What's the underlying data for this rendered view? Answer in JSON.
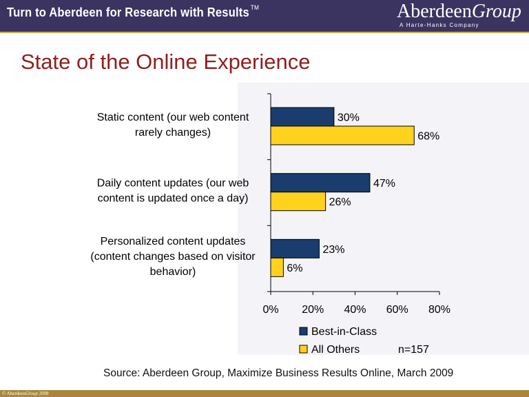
{
  "header": {
    "tagline": "Turn to Aberdeen for Research with Results",
    "trademark": "TM",
    "logo_main_a": "Aberdeen",
    "logo_main_b": "Group",
    "logo_sub": "A Harte-Hanks Company"
  },
  "slide": {
    "title": "State of the Online Experience",
    "source": "Source: Aberdeen Group, Maximize Business Results Online, March 2009"
  },
  "footer": {
    "copyright_a": "© Aberdeen",
    "copyright_b": "Group",
    "copyright_c": " 2008"
  },
  "chart_data": {
    "type": "bar",
    "orientation": "horizontal",
    "categories": [
      [
        "Static content (our web content",
        "rarely changes)"
      ],
      [
        "Daily content updates (our web",
        "content is updated once a day)"
      ],
      [
        "Personalized content updates",
        "(content changes based on visitor",
        "behavior)"
      ]
    ],
    "series": [
      {
        "name": "Best-in-Class",
        "values": [
          30,
          47,
          23
        ],
        "labels": [
          "30%",
          "47%",
          "23%"
        ],
        "color": "#1a3d6e"
      },
      {
        "name": "All Others",
        "values": [
          68,
          26,
          6
        ],
        "labels": [
          "68%",
          "26%",
          "6%"
        ],
        "color": "#ffd21e"
      }
    ],
    "xlim": [
      0,
      80
    ],
    "xticks": [
      0,
      20,
      40,
      60,
      80
    ],
    "xtick_labels": [
      "0%",
      "20%",
      "40%",
      "60%",
      "80%"
    ],
    "grid": false,
    "legend_position": "bottom",
    "note": "n=157"
  }
}
